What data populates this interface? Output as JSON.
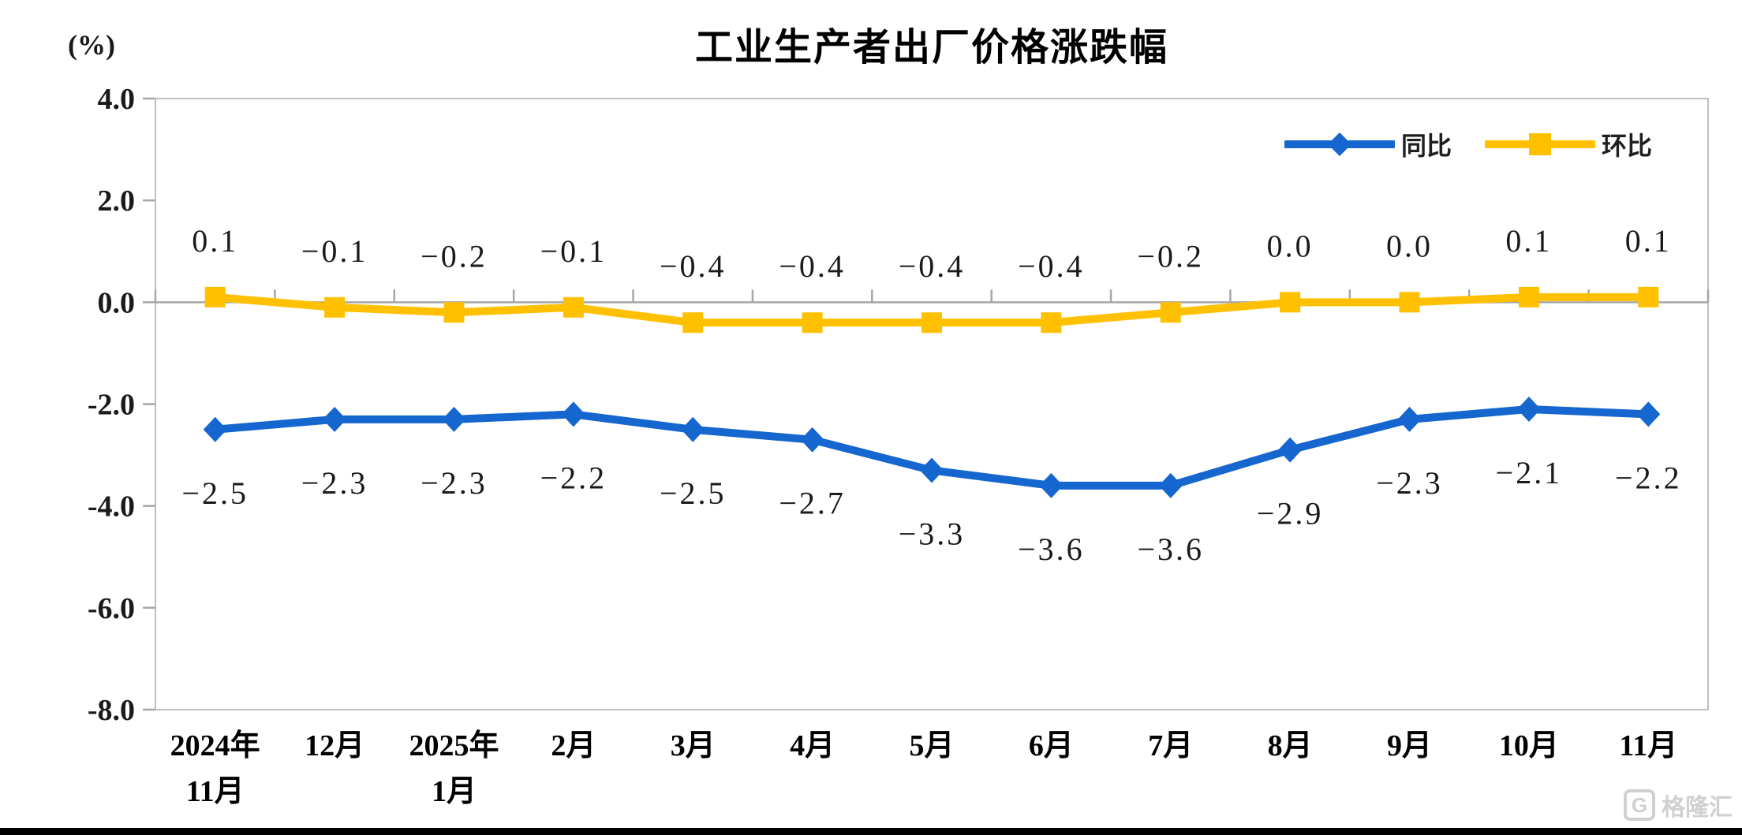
{
  "page": {
    "watermark": {
      "logo_letter": "G",
      "brand": "格隆汇"
    }
  },
  "chart_data": {
    "type": "line",
    "title": "工业生产者出厂价格涨跌幅",
    "unit_label": "(%)",
    "ylim": [
      -8.0,
      4.0
    ],
    "ytick_interval": 2.0,
    "ytick_labels": [
      "4.0",
      "2.0",
      "0.0",
      "-2.0",
      "-4.0",
      "-6.0",
      "-8.0"
    ],
    "ytick_values": [
      4,
      2,
      0,
      -2,
      -4,
      -6,
      -8
    ],
    "grid": false,
    "legend_position": "top-right-inside",
    "categories": [
      "2024年\n11月",
      "12月",
      "2025年\n1月",
      "2月",
      "3月",
      "4月",
      "5月",
      "6月",
      "7月",
      "8月",
      "9月",
      "10月",
      "11月"
    ],
    "series": [
      {
        "name": "同比",
        "color": "#1666CF",
        "marker": "diamond",
        "label_position": "below",
        "values": [
          -2.5,
          -2.3,
          -2.3,
          -2.2,
          -2.5,
          -2.7,
          -3.3,
          -3.6,
          -3.6,
          -2.9,
          -2.3,
          -2.1,
          -2.2
        ]
      },
      {
        "name": "环比",
        "color": "#FFC000",
        "marker": "square",
        "label_position": "above",
        "values": [
          0.1,
          -0.1,
          -0.2,
          -0.1,
          -0.4,
          -0.4,
          -0.4,
          -0.4,
          -0.2,
          0.0,
          0.0,
          0.1,
          0.1
        ]
      }
    ],
    "axis_color": "#BFBFBF",
    "zero_line_color": "#A6A6A6",
    "tick_color": "#A6A6A6",
    "text_color": "#1A1A1A",
    "xlabel_color": "#000000"
  }
}
